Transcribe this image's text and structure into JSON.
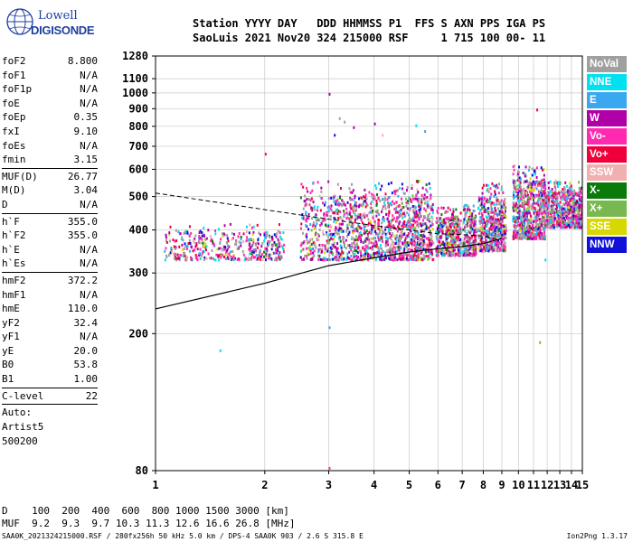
{
  "logo": {
    "line1": "Lowell",
    "line2": "DIGISONDE"
  },
  "header": {
    "labels": "Station YYYY DAY   DDD HHMMSS P1  FFS S AXN PPS IGA PS",
    "values": "SaoLuis 2021 Nov20 324 215000 RSF     1 715 100 00- 11"
  },
  "params_group1": [
    {
      "k": "foF2",
      "v": "8.800"
    },
    {
      "k": "foF1",
      "v": "N/A"
    },
    {
      "k": "foF1p",
      "v": "N/A"
    },
    {
      "k": "foE",
      "v": "N/A"
    },
    {
      "k": "foEp",
      "v": "0.35"
    },
    {
      "k": "fxI",
      "v": "9.10"
    },
    {
      "k": "foEs",
      "v": "N/A"
    },
    {
      "k": "fmin",
      "v": "3.15"
    }
  ],
  "params_group2": [
    {
      "k": "MUF(D)",
      "v": "26.77"
    },
    {
      "k": "M(D)",
      "v": "3.04"
    },
    {
      "k": "D",
      "v": "N/A"
    }
  ],
  "params_group3": [
    {
      "k": "h`F",
      "v": "355.0"
    },
    {
      "k": "h`F2",
      "v": "355.0"
    },
    {
      "k": "h`E",
      "v": "N/A"
    },
    {
      "k": "h`Es",
      "v": "N/A"
    }
  ],
  "params_group4": [
    {
      "k": "hmF2",
      "v": "372.2"
    },
    {
      "k": "hmF1",
      "v": "N/A"
    },
    {
      "k": "hmE",
      "v": "110.0"
    },
    {
      "k": "yF2",
      "v": "32.4"
    },
    {
      "k": "yF1",
      "v": "N/A"
    },
    {
      "k": "yE",
      "v": "20.0"
    },
    {
      "k": "B0",
      "v": "53.8"
    },
    {
      "k": "B1",
      "v": "1.00"
    }
  ],
  "params_group5": [
    {
      "k": "C-level",
      "v": "22"
    }
  ],
  "auto": {
    "l1": "Auto:",
    "l2": "Artist5",
    "l3": "500200"
  },
  "legend": [
    {
      "label": "NoVal",
      "color": "#a0a0a0"
    },
    {
      "label": "NNE",
      "color": "#00e0f0"
    },
    {
      "label": "E",
      "color": "#3aa8f0"
    },
    {
      "label": "W",
      "color": "#b000a8"
    },
    {
      "label": "Vo-",
      "color": "#ff2ab0"
    },
    {
      "label": "Vo+",
      "color": "#f0003a"
    },
    {
      "label": "SSW",
      "color": "#f0b0b0"
    },
    {
      "label": "X-",
      "color": "#0a7a0a"
    },
    {
      "label": "X+",
      "color": "#78b850"
    },
    {
      "label": "SSE",
      "color": "#d8d800"
    },
    {
      "label": "NNW",
      "color": "#1010d8"
    }
  ],
  "bottom": {
    "d_row": "D    100  200  400  600  800 1000 1500 3000 [km]",
    "muf_row": "MUF  9.2  9.3  9.7 10.3 11.3 12.6 16.6 26.8 [MHz]"
  },
  "footer": {
    "left": "SAA0K_2021324215000.RSF / 280fx256h 50 kHz 5.0 km / DPS-4 SAA0K 903 / 2.6 S 315.8 E",
    "right": "Ion2Png 1.3.17"
  },
  "chart_data": {
    "type": "scatter",
    "xlabel": "",
    "ylabel": "",
    "xlim": [
      1,
      15
    ],
    "ylim": [
      80,
      1280
    ],
    "x_ticks": [
      1,
      2,
      3,
      4,
      5,
      6,
      7,
      8,
      9,
      10,
      11,
      12,
      13,
      14,
      15
    ],
    "y_ticks": [
      80,
      200,
      300,
      400,
      500,
      600,
      700,
      800,
      900,
      1000,
      1100,
      1280
    ],
    "scale": "log-log",
    "series": [
      {
        "values": [
          {
            "f": 1.0,
            "h": 236
          },
          {
            "f": 2.0,
            "h": 280
          },
          {
            "f": 3.0,
            "h": 315
          },
          {
            "f": 4.0,
            "h": 332
          },
          {
            "f": 5.0,
            "h": 345
          },
          {
            "f": 6.0,
            "h": 353
          },
          {
            "f": 7.0,
            "h": 358
          },
          {
            "f": 8.0,
            "h": 365
          },
          {
            "f": 9.0,
            "h": 378
          }
        ]
      },
      {
        "values": [
          {
            "f": 1.0,
            "h": 512
          },
          {
            "f": 1.5,
            "h": 480
          },
          {
            "f": 2.0,
            "h": 458
          },
          {
            "f": 3.0,
            "h": 430
          },
          {
            "f": 4.0,
            "h": 412
          },
          {
            "f": 5.0,
            "h": 400
          },
          {
            "f": 6.0,
            "h": 390
          },
          {
            "f": 7.0,
            "h": 388
          },
          {
            "f": 8.0,
            "h": 384
          },
          {
            "f": 8.8,
            "h": 375
          }
        ]
      }
    ],
    "echo_clusters": [
      {
        "f0": 1.05,
        "f1": 2.25,
        "h0": 330,
        "h1": 420,
        "n": 420
      },
      {
        "f0": 2.5,
        "f1": 5.8,
        "h0": 330,
        "h1": 560,
        "n": 1400
      },
      {
        "f0": 5.9,
        "f1": 6.9,
        "h0": 340,
        "h1": 470,
        "n": 360
      },
      {
        "f0": 7.0,
        "f1": 7.6,
        "h0": 340,
        "h1": 480,
        "n": 240
      },
      {
        "f0": 7.7,
        "f1": 9.2,
        "h0": 350,
        "h1": 550,
        "n": 500
      },
      {
        "f0": 9.6,
        "f1": 11.8,
        "h0": 380,
        "h1": 620,
        "n": 700
      },
      {
        "f0": 11.8,
        "f1": 14.9,
        "h0": 410,
        "h1": 560,
        "n": 650
      }
    ],
    "isolated_echoes": [
      {
        "f": 3.0,
        "h": 1000
      },
      {
        "f": 3.2,
        "h": 850
      },
      {
        "f": 3.3,
        "h": 830
      },
      {
        "f": 3.1,
        "h": 760
      },
      {
        "f": 3.5,
        "h": 800
      },
      {
        "f": 4.0,
        "h": 820
      },
      {
        "f": 4.2,
        "h": 760
      },
      {
        "f": 5.2,
        "h": 810
      },
      {
        "f": 5.5,
        "h": 780
      },
      {
        "f": 2.0,
        "h": 670
      },
      {
        "f": 1.5,
        "h": 180
      },
      {
        "f": 3.0,
        "h": 210
      },
      {
        "f": 3.0,
        "h": 82
      },
      {
        "f": 11.2,
        "h": 900
      },
      {
        "f": 11.4,
        "h": 190
      },
      {
        "f": 11.8,
        "h": 330
      }
    ],
    "cluster_points_per_band": 1
  }
}
